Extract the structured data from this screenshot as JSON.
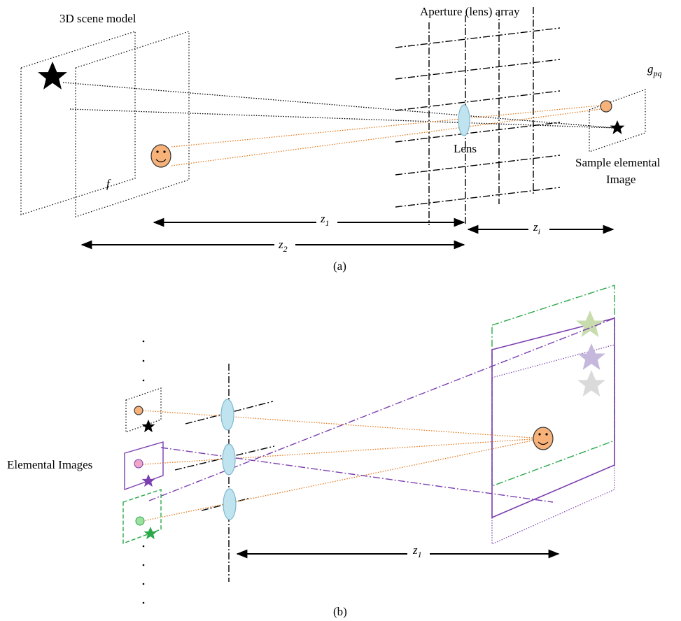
{
  "panel_a": {
    "scene_label": "3D scene model",
    "array_label": "Aperture (lens) array",
    "lens_label": "Lens",
    "g": {
      "base": "g",
      "sub": "pq"
    },
    "sample_label": [
      "Sample elemental",
      "Image"
    ],
    "f": "f",
    "z1": {
      "base": "z",
      "sub": "1"
    },
    "z2": {
      "base": "z",
      "sub": "2"
    },
    "zi": {
      "base": "z",
      "sub": "i"
    },
    "caption": "(a)"
  },
  "panel_b": {
    "ei_label": "Elemental Images",
    "z1": {
      "base": "z",
      "sub": "1"
    },
    "caption": "(b)"
  }
}
